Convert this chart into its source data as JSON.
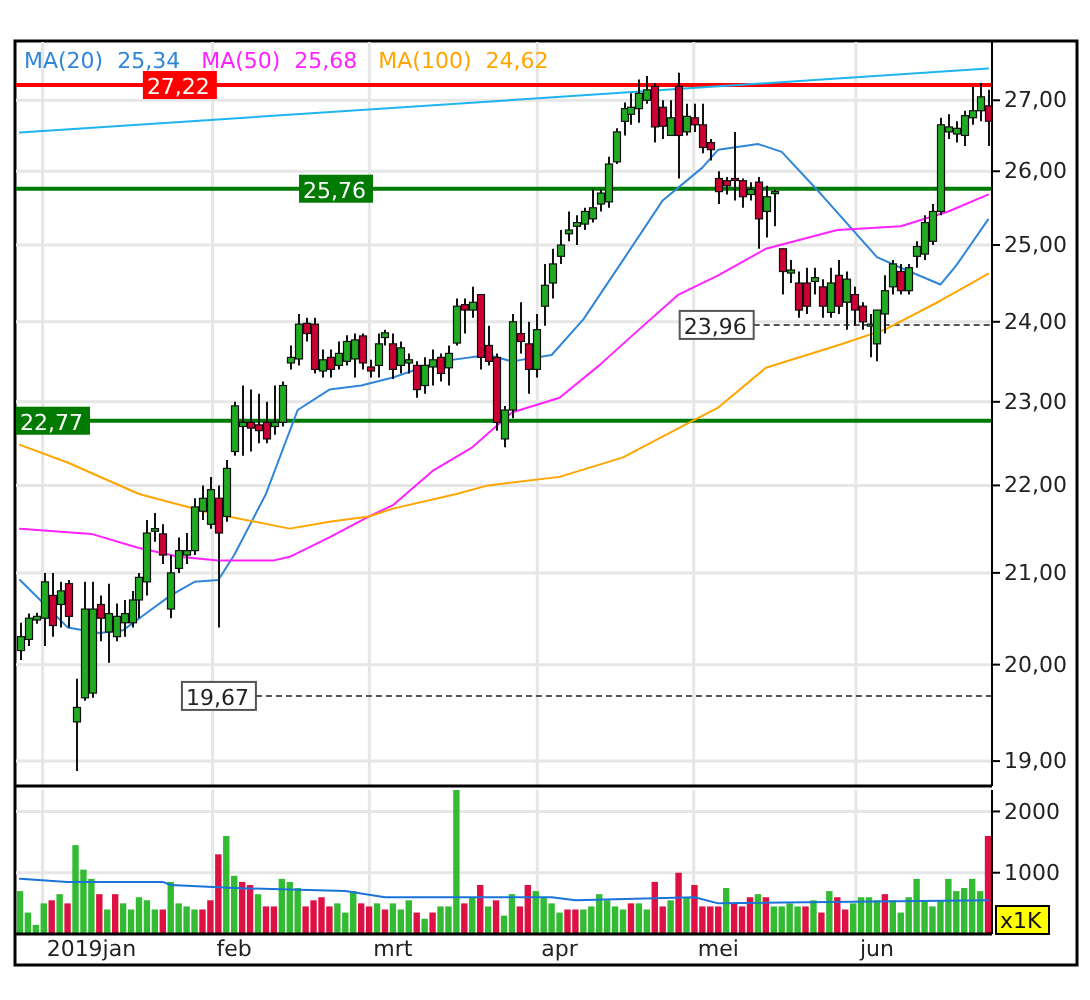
{
  "chart_data": [
    {
      "type": "candlestick",
      "legend": "top left",
      "log": true,
      "grid": true,
      "tick_labels": "y",
      "categories": [
        null,
        null,
        null,
        null,
        null,
        null,
        null,
        null,
        null,
        null,
        null,
        null,
        null,
        null,
        null,
        null,
        null,
        null,
        null,
        null,
        null,
        null,
        null,
        null,
        null,
        null,
        null,
        null,
        null,
        null,
        null,
        null,
        null,
        null,
        null,
        null,
        null,
        null,
        null,
        null,
        null,
        null,
        null,
        null,
        null,
        null,
        null,
        null,
        null,
        null,
        null,
        null,
        null,
        null,
        null,
        null,
        null,
        null,
        null,
        null,
        null,
        null,
        null,
        null,
        null,
        null,
        null,
        null,
        null,
        null,
        null,
        null,
        null,
        null,
        null,
        null,
        null,
        null,
        null,
        null,
        null,
        null,
        null,
        null,
        null,
        null,
        null,
        null,
        null,
        null,
        null,
        null,
        null,
        null,
        null,
        null,
        null,
        null,
        null,
        null,
        null,
        null,
        null,
        null,
        null,
        null,
        null,
        null,
        null,
        null,
        null,
        null,
        null,
        null,
        null,
        null,
        null,
        null,
        null,
        null,
        null,
        null,
        null
      ],
      "ylim": [
        18.75,
        27.85
      ],
      "yticks": [
        {
          "value": 19,
          "label": "19,00"
        },
        {
          "value": 20,
          "label": "20,00"
        },
        {
          "value": 21,
          "label": "21,00"
        },
        {
          "value": 22,
          "label": "22,00"
        },
        {
          "value": 23,
          "label": "23,00"
        },
        {
          "value": 24,
          "label": "24,00"
        },
        {
          "value": 25,
          "label": "25,00"
        },
        {
          "value": 26,
          "label": "26,00"
        },
        {
          "value": 27,
          "label": "27,00"
        }
      ],
      "ohlc": [
        [
          20.15,
          20.45,
          20.05,
          20.3
        ],
        [
          20.27,
          20.55,
          20.2,
          20.5
        ],
        [
          20.48,
          20.56,
          20.44,
          20.52
        ],
        [
          20.5,
          21.0,
          20.2,
          20.9
        ],
        [
          20.75,
          21.0,
          20.3,
          20.42
        ],
        [
          20.65,
          20.9,
          20.4,
          20.8
        ],
        [
          20.88,
          20.92,
          20.4,
          20.52
        ],
        [
          19.4,
          19.85,
          18.9,
          19.55
        ],
        [
          19.65,
          20.9,
          19.62,
          20.6
        ],
        [
          19.7,
          20.9,
          19.65,
          20.6
        ],
        [
          20.65,
          20.75,
          20.25,
          20.5
        ],
        [
          20.35,
          20.88,
          20.02,
          20.55
        ],
        [
          20.3,
          20.66,
          20.25,
          20.52
        ],
        [
          20.45,
          20.7,
          20.3,
          20.55
        ],
        [
          20.45,
          20.8,
          20.4,
          20.7
        ],
        [
          20.7,
          21.0,
          20.5,
          20.95
        ],
        [
          20.9,
          21.6,
          20.75,
          21.45
        ],
        [
          21.47,
          21.68,
          21.35,
          21.5
        ],
        [
          21.44,
          21.55,
          21.1,
          21.2
        ],
        [
          20.6,
          21.2,
          20.5,
          21.0
        ],
        [
          21.05,
          21.4,
          21.0,
          21.25
        ],
        [
          21.2,
          21.45,
          21.1,
          21.25
        ],
        [
          21.25,
          21.85,
          21.2,
          21.75
        ],
        [
          21.7,
          22.0,
          21.6,
          21.85
        ],
        [
          21.55,
          22.1,
          21.5,
          21.95
        ],
        [
          21.85,
          22.0,
          20.4,
          21.45
        ],
        [
          21.64,
          22.3,
          21.58,
          22.2
        ],
        [
          22.4,
          23.0,
          22.35,
          22.95
        ],
        [
          22.7,
          23.2,
          22.35,
          22.75
        ],
        [
          22.75,
          23.15,
          22.4,
          22.68
        ],
        [
          22.72,
          23.1,
          22.5,
          22.65
        ],
        [
          22.75,
          23.0,
          22.5,
          22.55
        ],
        [
          22.7,
          23.2,
          22.6,
          22.75
        ],
        [
          22.75,
          23.25,
          22.7,
          23.2
        ],
        [
          23.48,
          23.7,
          23.4,
          23.55
        ],
        [
          23.53,
          24.1,
          23.45,
          23.97
        ],
        [
          23.98,
          24.05,
          23.75,
          23.85
        ],
        [
          23.97,
          24.05,
          23.35,
          23.4
        ],
        [
          23.38,
          23.65,
          23.3,
          23.52
        ],
        [
          23.55,
          23.65,
          23.3,
          23.4
        ],
        [
          23.45,
          23.75,
          23.4,
          23.6
        ],
        [
          23.5,
          23.83,
          23.45,
          23.75
        ],
        [
          23.53,
          23.85,
          23.3,
          23.77
        ],
        [
          23.82,
          23.85,
          23.4,
          23.48
        ],
        [
          23.43,
          23.52,
          23.3,
          23.38
        ],
        [
          23.45,
          23.85,
          23.3,
          23.72
        ],
        [
          23.8,
          23.9,
          23.7,
          23.86
        ],
        [
          23.72,
          23.85,
          23.28,
          23.4
        ],
        [
          23.45,
          23.75,
          23.35,
          23.67
        ],
        [
          23.48,
          23.6,
          23.35,
          23.52
        ],
        [
          23.45,
          23.5,
          23.05,
          23.15
        ],
        [
          23.2,
          23.55,
          23.1,
          23.45
        ],
        [
          23.43,
          23.65,
          23.2,
          23.52
        ],
        [
          23.55,
          23.6,
          23.25,
          23.35
        ],
        [
          23.42,
          23.7,
          23.2,
          23.6
        ],
        [
          23.73,
          24.3,
          23.7,
          24.2
        ],
        [
          24.22,
          24.3,
          23.85,
          24.15
        ],
        [
          24.15,
          24.45,
          24.05,
          24.25
        ],
        [
          24.35,
          24.35,
          23.4,
          23.55
        ],
        [
          23.7,
          23.95,
          23.45,
          23.5
        ],
        [
          23.55,
          23.6,
          22.65,
          22.75
        ],
        [
          22.55,
          22.95,
          22.45,
          22.9
        ],
        [
          22.9,
          24.1,
          22.8,
          24.0
        ],
        [
          23.85,
          24.25,
          23.6,
          23.75
        ],
        [
          23.72,
          24.0,
          23.1,
          23.4
        ],
        [
          23.4,
          24.1,
          23.3,
          23.9
        ],
        [
          24.2,
          24.75,
          23.95,
          24.47
        ],
        [
          24.5,
          24.95,
          24.3,
          24.75
        ],
        [
          24.85,
          25.2,
          24.75,
          25.0
        ],
        [
          25.15,
          25.45,
          25.05,
          25.2
        ],
        [
          25.25,
          25.4,
          25.0,
          25.3
        ],
        [
          25.28,
          25.5,
          25.2,
          25.45
        ],
        [
          25.35,
          25.75,
          25.3,
          25.5
        ],
        [
          25.55,
          25.75,
          25.45,
          25.7
        ],
        [
          25.58,
          26.2,
          25.5,
          26.1
        ],
        [
          26.13,
          26.6,
          26.1,
          26.55
        ],
        [
          26.7,
          26.97,
          26.5,
          26.88
        ],
        [
          26.8,
          27.1,
          26.65,
          26.9
        ],
        [
          26.88,
          27.3,
          26.68,
          27.1
        ],
        [
          27.0,
          27.35,
          26.95,
          27.15
        ],
        [
          27.2,
          27.25,
          26.4,
          26.62
        ],
        [
          26.9,
          27.0,
          26.45,
          26.63
        ],
        [
          26.5,
          27.0,
          26.5,
          26.75
        ],
        [
          27.2,
          27.4,
          25.9,
          26.5
        ],
        [
          26.55,
          26.95,
          26.5,
          26.77
        ],
        [
          26.75,
          26.95,
          26.55,
          26.65
        ],
        [
          26.65,
          26.95,
          26.25,
          26.33
        ],
        [
          26.4,
          26.45,
          26.15,
          26.3
        ],
        [
          25.9,
          26.0,
          25.55,
          25.72
        ],
        [
          25.87,
          25.92,
          25.68,
          25.8
        ],
        [
          25.9,
          26.55,
          25.6,
          25.88
        ],
        [
          25.87,
          25.9,
          25.5,
          25.65
        ],
        [
          25.68,
          25.85,
          25.6,
          25.75
        ],
        [
          25.85,
          25.92,
          24.95,
          25.35
        ],
        [
          25.45,
          25.8,
          25.1,
          25.65
        ],
        [
          25.7,
          25.75,
          25.25,
          25.72
        ],
        [
          24.95,
          24.95,
          24.35,
          24.65
        ],
        [
          24.63,
          24.8,
          24.5,
          24.67
        ],
        [
          24.5,
          24.65,
          24.05,
          24.15
        ],
        [
          24.5,
          24.7,
          24.1,
          24.2
        ],
        [
          24.52,
          24.7,
          24.35,
          24.57
        ],
        [
          24.45,
          24.55,
          24.05,
          24.2
        ],
        [
          24.12,
          24.7,
          24.05,
          24.5
        ],
        [
          24.6,
          24.8,
          24.1,
          24.2
        ],
        [
          24.25,
          24.65,
          23.9,
          24.55
        ],
        [
          24.35,
          24.45,
          23.95,
          24.15
        ],
        [
          24.2,
          24.25,
          23.9,
          24.0
        ],
        [
          23.95,
          24.1,
          23.55,
          23.97
        ],
        [
          23.72,
          24.15,
          23.5,
          24.15
        ],
        [
          24.1,
          24.6,
          23.85,
          24.4
        ],
        [
          24.45,
          24.8,
          24.35,
          24.75
        ],
        [
          24.65,
          24.75,
          24.35,
          24.4
        ],
        [
          24.4,
          24.75,
          24.35,
          24.7
        ],
        [
          24.85,
          25.05,
          24.7,
          24.98
        ],
        [
          24.88,
          25.4,
          24.8,
          25.3
        ],
        [
          25.05,
          25.55,
          25.0,
          25.45
        ],
        [
          25.45,
          26.75,
          25.4,
          26.65
        ],
        [
          26.55,
          26.8,
          26.45,
          26.62
        ],
        [
          26.52,
          26.7,
          26.4,
          26.6
        ],
        [
          26.5,
          26.85,
          26.35,
          26.78
        ],
        [
          26.75,
          27.2,
          26.65,
          26.85
        ],
        [
          26.85,
          27.25,
          26.7,
          27.05
        ],
        [
          26.92,
          27.15,
          26.35,
          26.7
        ]
      ],
      "series": [
        {
          "type": "line",
          "name": "MA(20)  25,34",
          "color": "#2f86d8",
          "values": [
            20.92,
            null,
            null,
            20.66,
            null,
            null,
            20.4,
            null,
            null,
            null,
            20.34,
            null,
            null,
            20.37,
            null,
            null,
            20.56,
            null,
            null,
            20.75,
            null,
            null,
            20.9,
            null,
            null,
            20.92,
            null,
            21.2,
            null,
            null,
            null,
            21.9,
            null,
            null,
            null,
            22.9,
            null,
            null,
            null,
            23.15,
            null,
            null,
            null,
            23.2,
            null,
            null,
            null,
            23.3,
            null,
            null,
            null,
            null,
            null,
            23.5,
            null,
            null,
            null,
            null,
            null,
            23.58,
            null,
            null,
            23.5,
            null,
            null,
            null,
            null,
            23.58,
            null,
            null,
            null,
            24.03,
            null,
            null,
            null,
            null,
            24.8,
            null,
            null,
            null,
            null,
            25.6,
            null,
            null,
            null,
            null,
            26.05,
            null,
            26.3,
            null,
            null,
            null,
            null,
            26.38,
            null,
            null,
            26.27,
            null,
            null,
            null,
            null,
            25.68,
            null,
            null,
            null,
            null,
            null,
            null,
            24.84,
            null,
            null,
            24.7,
            null,
            null,
            null,
            null,
            24.48,
            null,
            24.73,
            null,
            null,
            null,
            25.34
          ]
        },
        {
          "type": "line",
          "name": "MA(50)  25,68",
          "color": "#ff22ff",
          "values": [
            21.5,
            null,
            null,
            null,
            null,
            null,
            null,
            null,
            null,
            21.44,
            null,
            null,
            null,
            null,
            null,
            21.28,
            null,
            null,
            null,
            null,
            21.18,
            null,
            null,
            null,
            null,
            21.14,
            null,
            null,
            null,
            null,
            null,
            null,
            21.14,
            null,
            21.18,
            null,
            null,
            null,
            null,
            21.4,
            null,
            null,
            null,
            null,
            21.64,
            null,
            null,
            21.77,
            null,
            null,
            null,
            null,
            22.17,
            null,
            null,
            null,
            null,
            22.45,
            null,
            null,
            null,
            null,
            22.87,
            null,
            null,
            null,
            null,
            null,
            23.05,
            null,
            null,
            null,
            null,
            23.45,
            null,
            null,
            null,
            null,
            23.9,
            null,
            null,
            null,
            null,
            24.35,
            null,
            null,
            null,
            null,
            24.6,
            null,
            null,
            null,
            null,
            null,
            24.95,
            null,
            null,
            null,
            null,
            null,
            null,
            null,
            null,
            25.2,
            null,
            null,
            null,
            null,
            null,
            null,
            null,
            25.25,
            null,
            null,
            null,
            null,
            null,
            25.45,
            null,
            null,
            null,
            null,
            25.68
          ]
        },
        {
          "type": "line",
          "name": "MA(100)  24,62",
          "color": "#ffa500",
          "values": [
            22.48,
            null,
            null,
            null,
            null,
            null,
            22.27,
            null,
            null,
            null,
            null,
            null,
            null,
            null,
            null,
            21.9,
            null,
            null,
            null,
            null,
            null,
            null,
            null,
            null,
            21.68,
            null,
            null,
            null,
            null,
            null,
            null,
            null,
            null,
            null,
            21.5,
            null,
            null,
            null,
            null,
            21.58,
            null,
            null,
            null,
            null,
            21.64,
            null,
            null,
            21.73,
            null,
            null,
            null,
            null,
            null,
            null,
            null,
            21.9,
            null,
            null,
            null,
            22.0,
            null,
            null,
            null,
            null,
            null,
            null,
            null,
            null,
            22.1,
            null,
            null,
            null,
            null,
            null,
            null,
            null,
            22.33,
            null,
            null,
            null,
            null,
            null,
            null,
            null,
            null,
            22.78,
            null,
            null,
            22.93,
            null,
            null,
            null,
            null,
            null,
            23.42,
            null,
            null,
            null,
            null,
            null,
            null,
            null,
            null,
            23.7,
            null,
            null,
            null,
            null,
            null,
            23.9,
            null,
            null,
            null,
            null,
            null,
            null,
            24.27,
            null,
            null,
            null,
            null,
            null,
            24.62
          ]
        },
        {
          "type": "line",
          "color": "#1eb4f0",
          "values": [
            26.54,
            null,
            null,
            null,
            null,
            null,
            null,
            null,
            null,
            null,
            null,
            null,
            null,
            null,
            null,
            null,
            null,
            null,
            null,
            null,
            null,
            null,
            null,
            null,
            null,
            null,
            null,
            null,
            null,
            null,
            null,
            null,
            null,
            null,
            null,
            null,
            null,
            null,
            null,
            null,
            null,
            null,
            null,
            null,
            null,
            null,
            null,
            null,
            null,
            null,
            null,
            null,
            null,
            null,
            null,
            null,
            null,
            null,
            null,
            null,
            null,
            null,
            null,
            null,
            null,
            null,
            null,
            null,
            null,
            null,
            null,
            null,
            null,
            null,
            null,
            null,
            null,
            null,
            null,
            null,
            null,
            null,
            null,
            null,
            null,
            null,
            null,
            null,
            null,
            null,
            null,
            null,
            null,
            null,
            null,
            null,
            null,
            null,
            null,
            null,
            null,
            null,
            null,
            null,
            null,
            null,
            null,
            null,
            null,
            null,
            null,
            null,
            null,
            null,
            null,
            null,
            null,
            null,
            null,
            null,
            null,
            null,
            27.46
          ]
        }
      ],
      "ref_lines": [
        {
          "axis": "y",
          "value": 27.22,
          "label": "27,22",
          "color": "#ff0000",
          "line_style": "solid"
        },
        {
          "axis": "y",
          "value": 25.76,
          "label": "25,76",
          "color": "#007a00",
          "line_style": "solid"
        },
        {
          "axis": "y",
          "value": 22.77,
          "label": "22,77",
          "color": "#007a00",
          "line_style": "solid"
        },
        {
          "axis": "y",
          "value": 23.96,
          "label": "23,96",
          "color": "#555555",
          "line_style": "dashed"
        },
        {
          "axis": "y",
          "value": 19.67,
          "label": "19,67",
          "color": "#555555",
          "line_style": "dashed"
        }
      ]
    },
    {
      "type": "bar",
      "grid": true,
      "categories": [
        null,
        null,
        null,
        null,
        null,
        null,
        null,
        null,
        null,
        "2019jan",
        null,
        null,
        null,
        null,
        null,
        null,
        null,
        null,
        null,
        null,
        null,
        null,
        null,
        null,
        null,
        null,
        null,
        "feb",
        null,
        null,
        null,
        null,
        null,
        null,
        null,
        null,
        null,
        null,
        null,
        null,
        null,
        null,
        null,
        null,
        null,
        null,
        null,
        "mrt",
        null,
        null,
        null,
        null,
        null,
        null,
        null,
        null,
        null,
        null,
        null,
        null,
        null,
        null,
        null,
        null,
        null,
        null,
        null,
        null,
        "apr",
        null,
        null,
        null,
        null,
        null,
        null,
        null,
        null,
        null,
        null,
        null,
        null,
        null,
        null,
        null,
        null,
        null,
        null,
        null,
        "mei",
        null,
        null,
        null,
        null,
        null,
        null,
        null,
        null,
        null,
        null,
        null,
        null,
        null,
        null,
        null,
        null,
        null,
        null,
        null,
        "jun",
        null,
        null,
        null,
        null,
        null,
        null,
        null,
        null,
        null,
        null,
        null,
        null,
        null,
        null
      ],
      "ylim": [
        0,
        2350
      ],
      "yticks": [
        1000,
        2000
      ],
      "annotations": [
        "x1K"
      ],
      "series": [
        {
          "type": "bar",
          "values": [
            700,
            350,
            150,
            500,
            550,
            650,
            500,
            1450,
            1050,
            900,
            650,
            400,
            650,
            500,
            400,
            600,
            550,
            400,
            400,
            850,
            500,
            450,
            400,
            400,
            550,
            1300,
            1600,
            950,
            850,
            800,
            650,
            450,
            450,
            900,
            850,
            750,
            450,
            550,
            600,
            450,
            500,
            350,
            700,
            500,
            450,
            500,
            400,
            500,
            400,
            550,
            350,
            250,
            350,
            450,
            450,
            2350,
            500,
            600,
            800,
            450,
            550,
            300,
            650,
            450,
            800,
            700,
            600,
            500,
            350,
            400,
            400,
            400,
            450,
            650,
            550,
            450,
            400,
            500,
            500,
            400,
            850,
            450,
            550,
            1000,
            600,
            800,
            450,
            450,
            450,
            750,
            500,
            450,
            600,
            650,
            600,
            450,
            450,
            500,
            450,
            450,
            550,
            350,
            700,
            600,
            400,
            500,
            600,
            600,
            550,
            650,
            550,
            350,
            600,
            900,
            550,
            450,
            550,
            900,
            700,
            750,
            900,
            700,
            1600
          ],
          "colors": [
            "#33bb33",
            "#33bb33",
            "#33bb33",
            "#33bb33",
            "#dd1144",
            "#33bb33",
            "#dd1144",
            "#33bb33",
            "#33bb33",
            "#33bb33",
            "#dd1144",
            "#33bb33",
            "#dd1144",
            "#33bb33",
            "#33bb33",
            "#33bb33",
            "#33bb33",
            "#33bb33",
            "#dd1144",
            "#33bb33",
            "#33bb33",
            "#33bb33",
            "#33bb33",
            "#dd1144",
            "#dd1144",
            "#dd1144",
            "#33bb33",
            "#33bb33",
            "#dd1144",
            "#dd1144",
            "#33bb33",
            "#dd1144",
            "#dd1144",
            "#33bb33",
            "#33bb33",
            "#33bb33",
            "#dd1144",
            "#dd1144",
            "#dd1144",
            "#dd1144",
            "#33bb33",
            "#33bb33",
            "#33bb33",
            "#dd1144",
            "#dd1144",
            "#33bb33",
            "#dd1144",
            "#33bb33",
            "#33bb33",
            "#33bb33",
            "#dd1144",
            "#33bb33",
            "#dd1144",
            "#33bb33",
            "#33bb33",
            "#33bb33",
            "#dd1144",
            "#33bb33",
            "#dd1144",
            "#33bb33",
            "#dd1144",
            "#33bb33",
            "#33bb33",
            "#dd1144",
            "#dd1144",
            "#33bb33",
            "#33bb33",
            "#33bb33",
            "#33bb33",
            "#dd1144",
            "#dd1144",
            "#33bb33",
            "#33bb33",
            "#33bb33",
            "#33bb33",
            "#33bb33",
            "#33bb33",
            "#dd1144",
            "#33bb33",
            "#33bb33",
            "#dd1144",
            "#dd1144",
            "#33bb33",
            "#dd1144",
            "#33bb33",
            "#dd1144",
            "#dd1144",
            "#dd1144",
            "#dd1144",
            "#33bb33",
            "#dd1144",
            "#dd1144",
            "#dd1144",
            "#33bb33",
            "#dd1144",
            "#33bb33",
            "#33bb33",
            "#33bb33",
            "#33bb33",
            "#dd1144",
            "#33bb33",
            "#dd1144",
            "#33bb33",
            "#dd1144",
            "#dd1144",
            "#33bb33",
            "#33bb33",
            "#33bb33",
            "#33bb33",
            "#dd1144",
            "#33bb33",
            "#33bb33",
            "#33bb33",
            "#33bb33",
            "#33bb33",
            "#33bb33",
            "#33bb33",
            "#33bb33",
            "#33bb33",
            "#33bb33",
            "#33bb33",
            "#33bb33",
            "#dd1144"
          ]
        },
        {
          "type": "line",
          "color": "#1a73d9",
          "values": [
            900,
            null,
            null,
            null,
            null,
            null,
            850,
            null,
            null,
            null,
            null,
            null,
            null,
            null,
            null,
            null,
            null,
            null,
            850,
            800,
            null,
            null,
            null,
            null,
            null,
            null,
            null,
            750,
            null,
            null,
            null,
            null,
            null,
            null,
            null,
            null,
            null,
            null,
            null,
            null,
            null,
            700,
            null,
            null,
            null,
            null,
            600,
            null,
            null,
            null,
            null,
            null,
            null,
            null,
            null,
            null,
            600,
            null,
            null,
            null,
            null,
            null,
            null,
            null,
            null,
            null,
            null,
            600,
            null,
            null,
            550,
            null,
            null,
            null,
            null,
            null,
            null,
            null,
            null,
            null,
            null,
            null,
            null,
            null,
            null,
            600,
            null,
            null,
            500,
            null,
            null,
            null,
            null,
            null,
            null,
            null,
            null,
            null,
            null,
            null,
            null,
            null,
            null,
            null,
            null,
            null,
            null,
            null,
            null,
            null,
            null,
            null,
            null,
            null,
            null,
            null,
            null,
            null,
            null,
            null,
            null,
            null,
            550
          ]
        }
      ]
    }
  ]
}
